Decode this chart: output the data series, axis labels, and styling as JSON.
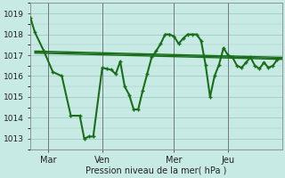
{
  "background_color": "#c8eae4",
  "grid_color": "#a0cdc6",
  "line_color": "#1a6e1a",
  "marker_color": "#1a6e1a",
  "text_color": "#222222",
  "xlabel": "Pression niveau de la mer( hPa )",
  "ylim": [
    1012.5,
    1019.5
  ],
  "yticks": [
    1013,
    1014,
    1015,
    1016,
    1017,
    1018,
    1019
  ],
  "xtick_labels": [
    "Mar",
    "Ven",
    "Mer",
    "Jeu"
  ],
  "xtick_positions": [
    24,
    96,
    192,
    264
  ],
  "vlines": [
    24,
    96,
    192,
    264
  ],
  "total_points": 336,
  "series_main": {
    "x": [
      0,
      6,
      18,
      30,
      42,
      54,
      66,
      72,
      78,
      84,
      96,
      102,
      108,
      114,
      120,
      126,
      132,
      138,
      144,
      150,
      156,
      162,
      168,
      174,
      180,
      186,
      192,
      198,
      204,
      210,
      216,
      222,
      228,
      234,
      240,
      246,
      252,
      258,
      264,
      270,
      276,
      282,
      288,
      294,
      300,
      306,
      312,
      318,
      324,
      330
    ],
    "y": [
      1018.8,
      1018.1,
      1017.2,
      1016.2,
      1016.0,
      1014.1,
      1014.1,
      1013.0,
      1013.1,
      1013.1,
      1016.4,
      1016.35,
      1016.3,
      1016.1,
      1016.7,
      1015.5,
      1015.1,
      1014.4,
      1014.4,
      1015.3,
      1016.1,
      1016.9,
      1017.2,
      1017.55,
      1018.0,
      1018.0,
      1017.9,
      1017.55,
      1017.8,
      1018.0,
      1018.0,
      1018.0,
      1017.7,
      1016.55,
      1015.0,
      1016.0,
      1016.55,
      1017.35,
      1017.0,
      1016.9,
      1016.5,
      1016.4,
      1016.65,
      1016.9,
      1016.5,
      1016.35,
      1016.65,
      1016.4,
      1016.5,
      1016.8
    ],
    "linewidth": 1.5,
    "marker": "+"
  },
  "series_flat": [
    {
      "x": [
        6,
        336
      ],
      "y": [
        1017.2,
        1016.9
      ],
      "linewidth": 1.0
    },
    {
      "x": [
        6,
        336
      ],
      "y": [
        1017.15,
        1016.85
      ],
      "linewidth": 1.0
    },
    {
      "x": [
        6,
        336
      ],
      "y": [
        1017.1,
        1016.8
      ],
      "linewidth": 1.0
    }
  ]
}
